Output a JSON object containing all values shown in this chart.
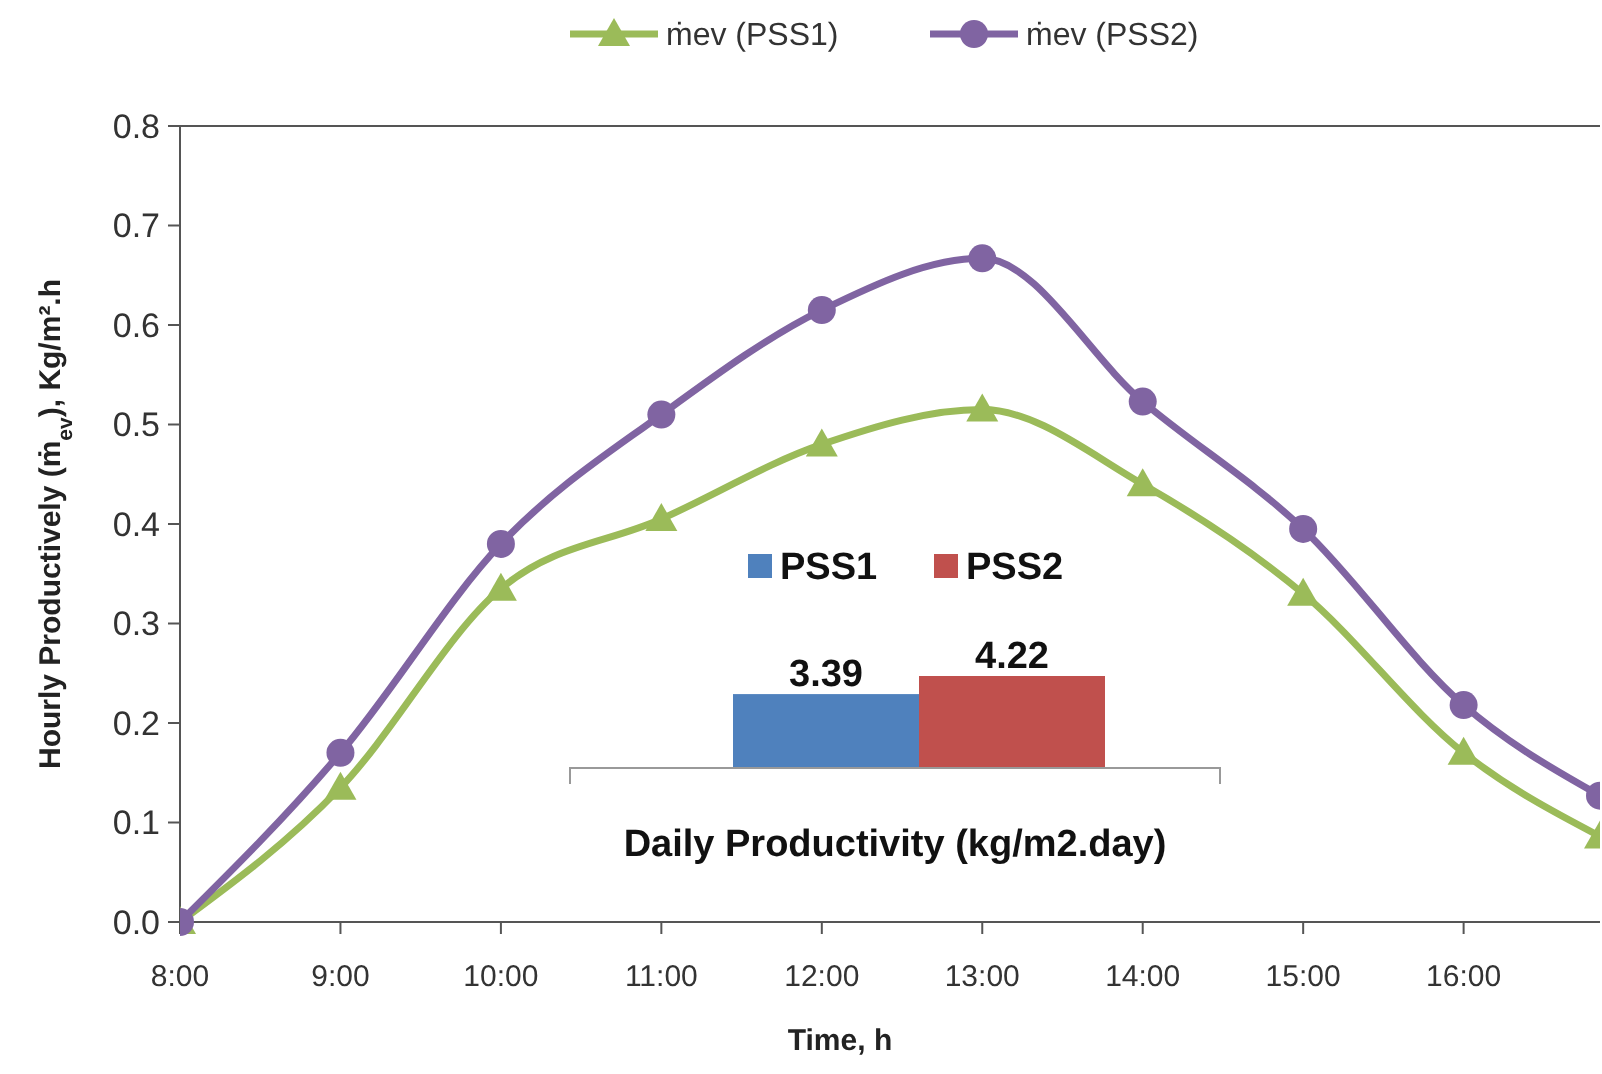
{
  "chart_data": [
    {
      "type": "line",
      "xlabel": "Time,  h",
      "ylabel": "Hourly Productively (ṁ$_{ev}$), Kg/m².h",
      "x": [
        8,
        9,
        10,
        11,
        12,
        13,
        14,
        15,
        16,
        16.85
      ],
      "xlim": [
        8,
        16.85
      ],
      "xticks": [
        {
          "value": 8,
          "label": "8:00"
        },
        {
          "value": 9,
          "label": "9:00"
        },
        {
          "value": 10,
          "label": "10:00"
        },
        {
          "value": 11,
          "label": "11:00"
        },
        {
          "value": 12,
          "label": "12:00"
        },
        {
          "value": 13,
          "label": "13:00"
        },
        {
          "value": 14,
          "label": "14:00"
        },
        {
          "value": 15,
          "label": "15:00"
        },
        {
          "value": 16,
          "label": "16:00"
        }
      ],
      "ylim": [
        0,
        0.8
      ],
      "yticks": [
        {
          "value": 0,
          "label": "0.0"
        },
        {
          "value": 0.1,
          "label": "0.1"
        },
        {
          "value": 0.2,
          "label": "0.2"
        },
        {
          "value": 0.3,
          "label": "0.3"
        },
        {
          "value": 0.4,
          "label": "0.4"
        },
        {
          "value": 0.5,
          "label": "0.5"
        },
        {
          "value": 0.6,
          "label": "0.6"
        },
        {
          "value": 0.7,
          "label": "0.7"
        },
        {
          "value": 0.8,
          "label": "0.8"
        }
      ],
      "grid": false,
      "legend": "top",
      "line_style": "solid",
      "series": [
        {
          "name": "ṁev (PSS1)",
          "color": "#9bbb59",
          "marker": "triangle",
          "values": [
            0,
            0.135,
            0.335,
            0.405,
            0.48,
            0.515,
            0.44,
            0.33,
            0.17,
            0.086
          ]
        },
        {
          "name": "ṁev (PSS2)",
          "color": "#8064a2",
          "marker": "circle",
          "values": [
            0,
            0.17,
            0.38,
            0.51,
            0.615,
            0.667,
            0.523,
            0.395,
            0.218,
            0.127
          ]
        }
      ]
    },
    {
      "type": "bar",
      "xlabel": "Daily Productivity (kg/m2.day)",
      "categories": [
        null
      ],
      "data_labels": true,
      "legend": "top",
      "series": [
        {
          "name": "PSS1",
          "color": "#4f81bd",
          "values": [
            3.39
          ]
        },
        {
          "name": "PSS2",
          "color": "#c0504d",
          "values": [
            4.22
          ]
        }
      ]
    }
  ]
}
